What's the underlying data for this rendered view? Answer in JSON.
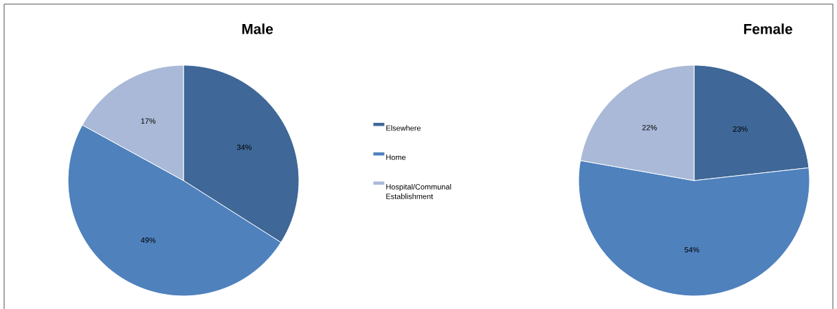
{
  "chart_data": [
    {
      "type": "pie",
      "title": "Male",
      "categories": [
        "Elsewhere",
        "Home",
        "Hospital/Communal Establishment"
      ],
      "values": [
        34,
        49,
        17
      ],
      "value_labels": [
        "34%",
        "49%",
        "17%"
      ],
      "colors": [
        "#3f6797",
        "#4f81bd",
        "#a9b9d7"
      ],
      "legend": "right"
    },
    {
      "type": "pie",
      "title": "Female",
      "values": [
        23,
        54,
        22
      ],
      "value_labels": [
        "23%",
        "54%",
        "22%"
      ],
      "colors": [
        "#3f6797",
        "#4f81bd",
        "#a9b9d7"
      ]
    }
  ]
}
